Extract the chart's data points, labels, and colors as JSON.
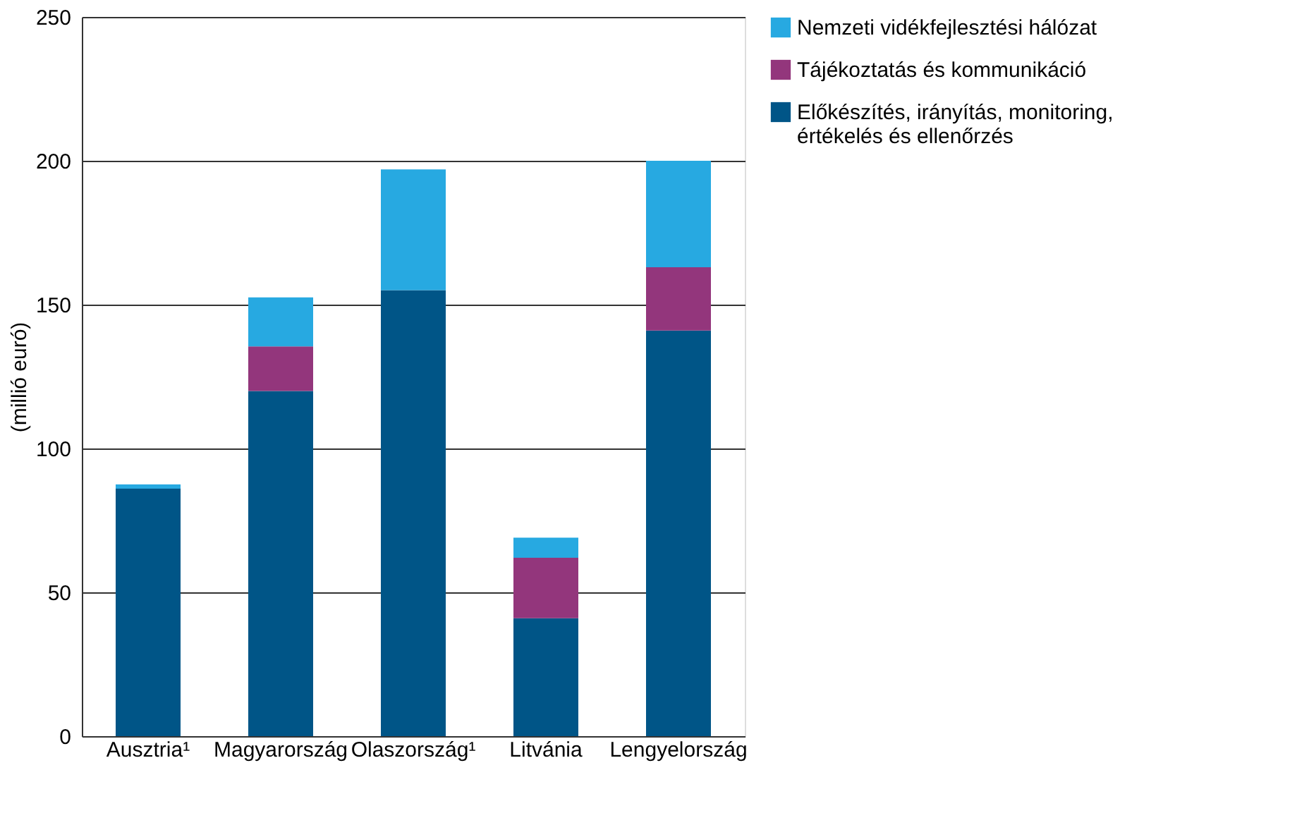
{
  "chart_data": {
    "type": "bar",
    "stacked": true,
    "ylabel": "(millió euró)",
    "categories": [
      "Ausztria¹",
      "Magyarország",
      "Olaszország¹",
      "Litvánia",
      "Lengyelország"
    ],
    "series": [
      {
        "name": "Előkészítés, irányítás, monitoring, értékelés és ellenőrzés",
        "color": "#005587",
        "values": [
          86,
          120,
          155,
          41,
          141
        ]
      },
      {
        "name": "Tájékoztatás és kommunikáció",
        "color": "#93367c",
        "values": [
          0,
          15.5,
          0,
          21,
          22
        ]
      },
      {
        "name": "Nemzeti vidékfejlesztési hálózat",
        "color": "#27a9e1",
        "values": [
          1.5,
          17,
          42,
          7,
          37
        ]
      }
    ],
    "ylim": [
      0,
      250
    ],
    "yticks": [
      0,
      50,
      100,
      150,
      200,
      250
    ],
    "grid": "y",
    "legend": "right"
  }
}
